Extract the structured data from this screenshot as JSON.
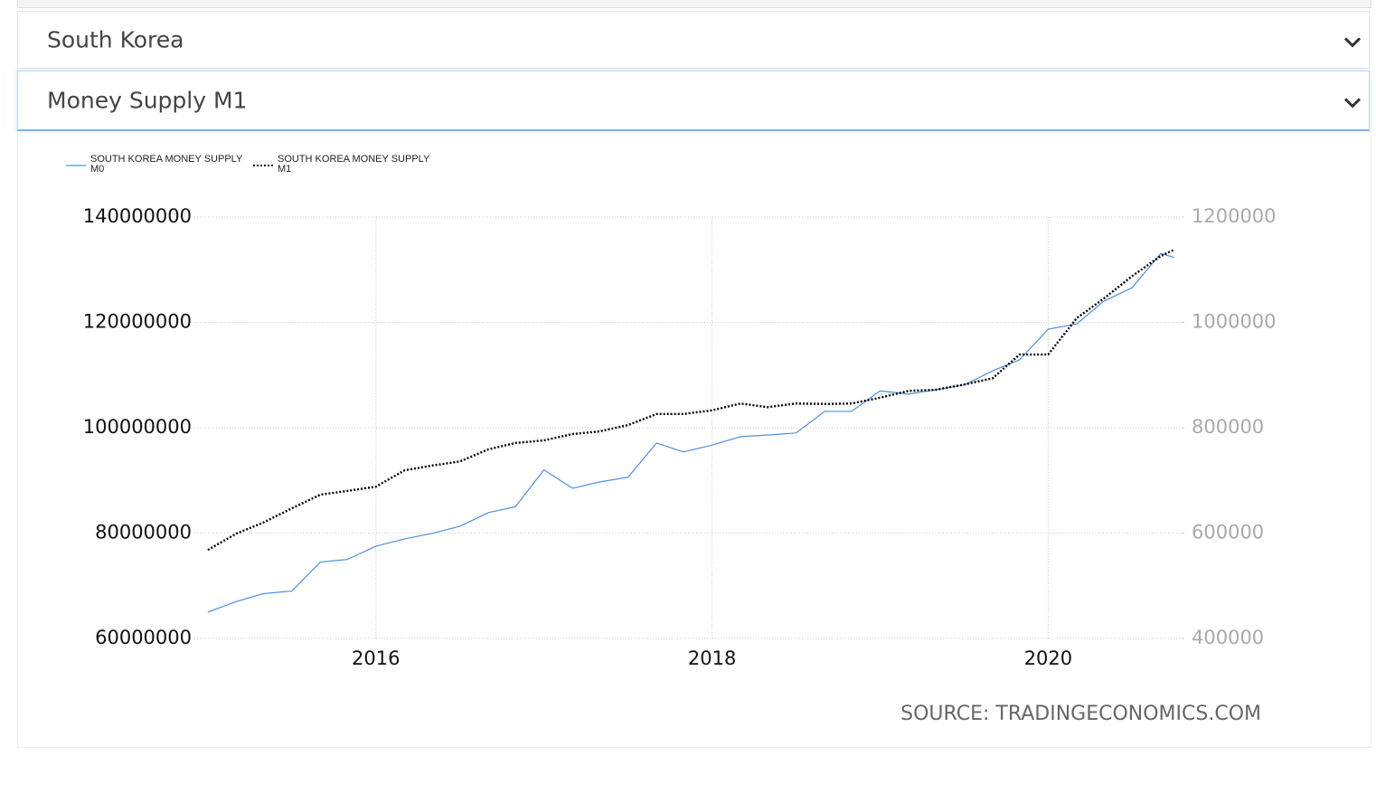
{
  "dropdowns": [
    {
      "label": "South Korea"
    },
    {
      "label": "Money Supply M1"
    }
  ],
  "chart_data": {
    "type": "line",
    "source": "SOURCE: TRADINGECONOMICS.COM",
    "x": [
      2015.0,
      2015.17,
      2015.33,
      2015.5,
      2015.67,
      2015.83,
      2016.0,
      2016.17,
      2016.33,
      2016.5,
      2016.67,
      2016.83,
      2017.0,
      2017.17,
      2017.33,
      2017.5,
      2017.67,
      2017.83,
      2018.0,
      2018.17,
      2018.33,
      2018.5,
      2018.67,
      2018.83,
      2019.0,
      2019.17,
      2019.33,
      2019.5,
      2019.67,
      2019.83,
      2020.0,
      2020.17,
      2020.33,
      2020.5,
      2020.67,
      2020.75
    ],
    "xlim": [
      2014.92,
      2020.81
    ],
    "xticks": [
      2016,
      2018,
      2020
    ],
    "ylim": [
      60000000,
      140000000
    ],
    "yticks": [
      60000000,
      80000000,
      100000000,
      120000000,
      140000000
    ],
    "y2lim": [
      400000,
      1200000
    ],
    "y2ticks": [
      400000,
      600000,
      800000,
      1000000,
      1200000
    ],
    "grid": true,
    "legend": "top-left",
    "series": [
      {
        "name": "SOUTH KOREA MONEY SUPPLY M0",
        "color": "#4a90e2",
        "style": "solid",
        "values": [
          65000000,
          67000000,
          68500000,
          69000000,
          74500000,
          75000000,
          77500000,
          78900000,
          79900000,
          81300000,
          83900000,
          85000000,
          92000000,
          88500000,
          89700000,
          90600000,
          97100000,
          95400000,
          96700000,
          98300000,
          98600000,
          99000000,
          103100000,
          103100000,
          107000000,
          106400000,
          107200000,
          108100000,
          110800000,
          112900000,
          118700000,
          119700000,
          124000000,
          126600000,
          133100000,
          132300000
        ]
      },
      {
        "name": "SOUTH KOREA MONEY SUPPLY M1",
        "color": "#000000",
        "style": "dotted",
        "axis": "y2",
        "values": [
          568000,
          599000,
          620000,
          647000,
          673000,
          680000,
          688000,
          719000,
          728000,
          736000,
          759000,
          771000,
          776000,
          788000,
          793000,
          805000,
          826000,
          826000,
          833000,
          846000,
          839000,
          846000,
          845000,
          846000,
          857000,
          870000,
          872000,
          882000,
          894000,
          939000,
          939000,
          1008000,
          1045000,
          1088000,
          1126000,
          1138000
        ]
      }
    ]
  }
}
